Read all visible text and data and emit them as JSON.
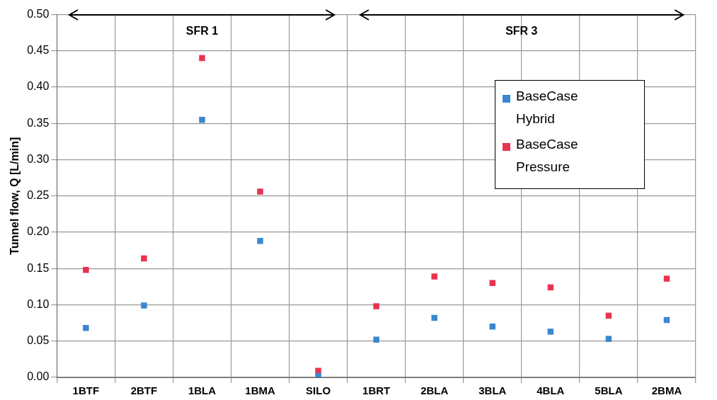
{
  "chart_data": {
    "type": "scatter",
    "ylabel": "Tunnel flow, Q [L/min]",
    "categories": [
      "1BTF",
      "2BTF",
      "1BLA",
      "1BMA",
      "SILO",
      "1BRT",
      "2BLA",
      "3BLA",
      "4BLA",
      "5BLA",
      "2BMA"
    ],
    "series": [
      {
        "name": "BaseCase Hybrid",
        "color": "#3a87cf",
        "values": [
          0.068,
          0.099,
          0.355,
          0.188,
          0.002,
          0.052,
          0.082,
          0.07,
          0.063,
          0.053,
          0.079
        ]
      },
      {
        "name": "BaseCase Pressure",
        "color": "#e8334f",
        "values": [
          0.148,
          0.164,
          0.44,
          0.256,
          0.009,
          0.098,
          0.139,
          0.13,
          0.124,
          0.085,
          0.136
        ]
      }
    ],
    "ylim": [
      0,
      0.5
    ],
    "yticks": [
      {
        "value": 0,
        "label": "0.00"
      },
      {
        "value": 0.05,
        "label": "0.05"
      },
      {
        "value": 0.1,
        "label": "0.10"
      },
      {
        "value": 0.15,
        "label": "0.15"
      },
      {
        "value": 0.2,
        "label": "0.20"
      },
      {
        "value": 0.25,
        "label": "0.25"
      },
      {
        "value": 0.3,
        "label": "0.30"
      },
      {
        "value": 0.35,
        "label": "0.35"
      },
      {
        "value": 0.4,
        "label": "0.40"
      },
      {
        "value": 0.45,
        "label": "0.45"
      },
      {
        "value": 0.5,
        "label": "0.50"
      }
    ],
    "annotations": [
      "SFR 1",
      "SFR 3"
    ],
    "grid": true,
    "legend": "top right",
    "marker": "square"
  }
}
